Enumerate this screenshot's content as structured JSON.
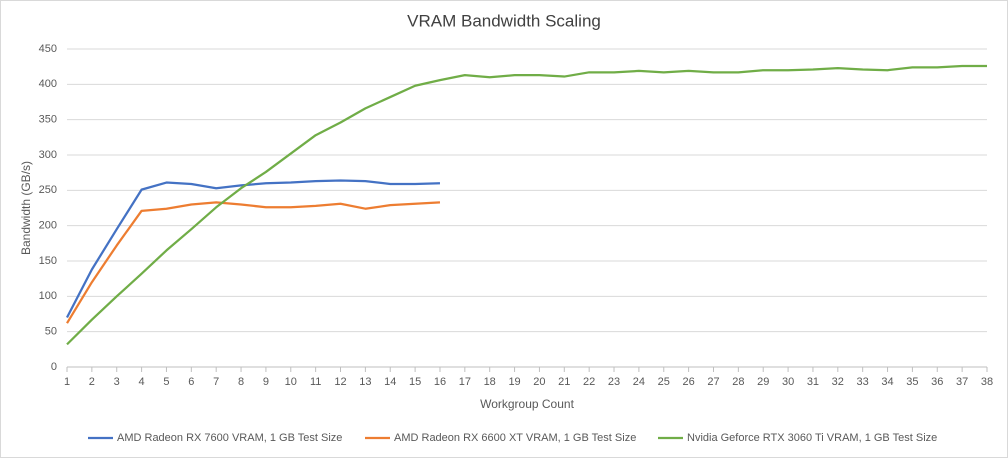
{
  "chart_data": {
    "type": "line",
    "title": "VRAM Bandwidth Scaling",
    "x_label": "Workgroup Count",
    "y_label": "Bandwidth (GB/s)",
    "x": [
      1,
      2,
      3,
      4,
      5,
      6,
      7,
      8,
      9,
      10,
      11,
      12,
      13,
      14,
      15,
      16,
      17,
      18,
      19,
      20,
      21,
      22,
      23,
      24,
      25,
      26,
      27,
      28,
      29,
      30,
      31,
      32,
      33,
      34,
      35,
      36,
      37,
      38
    ],
    "xlim": [
      1,
      38
    ],
    "xticks": [
      1,
      2,
      3,
      4,
      5,
      6,
      7,
      8,
      9,
      10,
      11,
      12,
      13,
      14,
      15,
      16,
      17,
      18,
      19,
      20,
      21,
      22,
      23,
      24,
      25,
      26,
      27,
      28,
      29,
      30,
      31,
      32,
      33,
      34,
      35,
      36,
      37,
      38
    ],
    "ylim": [
      0,
      450
    ],
    "yticks": [
      0,
      50,
      100,
      150,
      200,
      250,
      300,
      350,
      400,
      450
    ],
    "grid": true,
    "legend": "bottom",
    "series": [
      {
        "name": "AMD Radeon RX 7600 VRAM, 1 GB Test Size",
        "color": "#4472c4",
        "values": [
          70,
          138,
          195,
          251,
          261,
          259,
          253,
          257,
          260,
          261,
          263,
          264,
          263,
          259,
          259,
          260,
          null,
          null,
          null,
          null,
          null,
          null,
          null,
          null,
          null,
          null,
          null,
          null,
          null,
          null,
          null,
          null,
          null,
          null,
          null,
          null,
          null,
          null
        ]
      },
      {
        "name": "AMD Radeon RX 6600 XT VRAM, 1 GB Test Size",
        "color": "#ed7d31",
        "values": [
          62,
          120,
          172,
          221,
          224,
          230,
          233,
          230,
          226,
          226,
          228,
          231,
          224,
          229,
          231,
          233,
          null,
          null,
          null,
          null,
          null,
          null,
          null,
          null,
          null,
          null,
          null,
          null,
          null,
          null,
          null,
          null,
          null,
          null,
          null,
          null,
          null,
          null
        ]
      },
      {
        "name": "Nvidia Geforce RTX 3060 Ti VRAM, 1 GB Test Size",
        "color": "#70ad47",
        "values": [
          32,
          67,
          100,
          132,
          165,
          195,
          226,
          253,
          276,
          302,
          328,
          346,
          366,
          382,
          398,
          406,
          413,
          410,
          413,
          413,
          411,
          417,
          417,
          419,
          417,
          419,
          417,
          417,
          420,
          420,
          421,
          423,
          421,
          420,
          424,
          424,
          426,
          426
        ]
      }
    ]
  }
}
